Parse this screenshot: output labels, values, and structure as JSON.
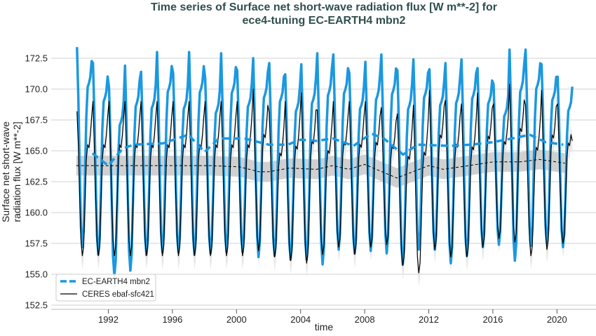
{
  "chart_data": {
    "type": "line",
    "title": [
      "Time series of Surface net short-wave radiation flux [W m**-2] for",
      "ece4-tuning EC-EARTH4 mbn2"
    ],
    "xlabel": "time",
    "ylabel": [
      "Surface net short-wave",
      "radiation flux [W m**-2]"
    ],
    "ylim": [
      152.1,
      174.0
    ],
    "xlim": [
      1989.0,
      2022.6
    ],
    "grid": "horizontal",
    "legend_position": "bottom-left",
    "yticks": [
      "152.5",
      "155.0",
      "157.5",
      "160.0",
      "162.5",
      "165.0",
      "167.5",
      "170.0",
      "172.5"
    ],
    "xticks": [
      "1992",
      "1996",
      "2000",
      "2004",
      "2008",
      "2012",
      "2016",
      "2020"
    ],
    "colors": {
      "model": "#1b98e0",
      "obs": "#000000",
      "obs_band": "#c8c8c8",
      "obs_spread": "#e4e4e4",
      "title": "#2f4f4f",
      "grid": "#d0d0d0"
    },
    "years": [
      1990,
      1991,
      1992,
      1993,
      1994,
      1995,
      1996,
      1997,
      1998,
      1999,
      2000,
      2001,
      2002,
      2003,
      2004,
      2005,
      2006,
      2007,
      2008,
      2009,
      2010,
      2011,
      2012,
      2013,
      2014,
      2015,
      2016,
      2017,
      2018,
      2019,
      2020
    ],
    "series": [
      {
        "name": "EC-EARTH4 mbn2",
        "style": "thick solid monthly + dashed running mean",
        "annual_max": [
          173.4,
          172.1,
          170.1,
          171.9,
          171.4,
          173.0,
          171.3,
          173.0,
          170.9,
          172.9,
          171.5,
          172.5,
          172.1,
          171.2,
          172.0,
          172.9,
          172.8,
          171.3,
          172.2,
          172.8,
          171.5,
          172.4,
          171.6,
          172.1,
          172.4,
          171.7,
          170.4,
          173.2,
          173.2,
          172.0,
          171.0
        ],
        "annual_min": [
          157.2,
          156.6,
          154.9,
          155.3,
          156.6,
          156.8,
          156.8,
          156.6,
          156.7,
          156.8,
          156.8,
          156.4,
          156.5,
          156.2,
          156.2,
          155.8,
          157.0,
          156.7,
          156.9,
          156.7,
          155.8,
          157.0,
          157.0,
          155.9,
          156.5,
          157.2,
          157.4,
          156.1,
          157.3,
          157.5,
          157.2
        ],
        "final_value": 170.2,
        "running_mean": [
          [
            1991.0,
            164.8
          ],
          [
            1992.0,
            163.8
          ],
          [
            1992.9,
            165.2
          ],
          [
            1993.6,
            165.5
          ],
          [
            1995.4,
            165.6
          ],
          [
            1997.0,
            166.3
          ],
          [
            1998.0,
            164.9
          ],
          [
            1998.9,
            166.0
          ],
          [
            2000.5,
            166.0
          ],
          [
            2002.0,
            165.5
          ],
          [
            2003.2,
            165.5
          ],
          [
            2004.0,
            165.9
          ],
          [
            2005.0,
            165.8
          ],
          [
            2006.0,
            166.0
          ],
          [
            2007.3,
            165.4
          ],
          [
            2008.4,
            166.4
          ],
          [
            2009.2,
            166.0
          ],
          [
            2010.4,
            164.7
          ],
          [
            2011.3,
            165.5
          ],
          [
            2013.4,
            165.4
          ],
          [
            2014.6,
            165.5
          ],
          [
            2016.0,
            165.7
          ],
          [
            2017.2,
            166.0
          ],
          [
            2018.3,
            166.3
          ],
          [
            2019.3,
            165.7
          ],
          [
            2020.4,
            165.5
          ]
        ]
      },
      {
        "name": "CERES ebaf-sfc421",
        "style": "thin solid monthly + dashed running mean with spread band",
        "annual_max": [
          169.0,
          169.0,
          169.0,
          169.0,
          169.0,
          169.0,
          169.0,
          169.0,
          169.0,
          169.0,
          169.0,
          170.0,
          168.1,
          169.0,
          169.7,
          168.3,
          169.0,
          169.0,
          169.0,
          168.5,
          168.0,
          168.7,
          169.9,
          169.1,
          168.8,
          169.7,
          168.8,
          170.4,
          168.7,
          169.9,
          168.8
        ],
        "annual_min": [
          156.5,
          156.5,
          156.5,
          156.5,
          156.5,
          156.5,
          156.5,
          156.5,
          156.5,
          156.5,
          156.5,
          156.9,
          156.4,
          156.1,
          155.9,
          156.6,
          157.2,
          156.6,
          157.2,
          157.4,
          155.7,
          155.1,
          157.0,
          156.4,
          156.4,
          157.2,
          157.9,
          157.6,
          156.5,
          157.0,
          157.5
        ],
        "first_value": 168.2,
        "final_value": 165.8,
        "running_mean": [
          [
            1990.0,
            163.8
          ],
          [
            1998.4,
            163.8
          ],
          [
            2000.2,
            163.7
          ],
          [
            2001.4,
            163.3
          ],
          [
            2002.0,
            163.3
          ],
          [
            2003.3,
            163.6
          ],
          [
            2005.0,
            163.5
          ],
          [
            2006.0,
            163.8
          ],
          [
            2007.0,
            163.5
          ],
          [
            2008.0,
            163.9
          ],
          [
            2010.0,
            162.8
          ],
          [
            2012.0,
            163.8
          ],
          [
            2012.9,
            163.5
          ],
          [
            2014.5,
            163.8
          ],
          [
            2016.0,
            164.1
          ],
          [
            2017.7,
            164.1
          ],
          [
            2018.9,
            164.3
          ],
          [
            2020.5,
            164.0
          ]
        ],
        "running_mean_spread": 0.8
      }
    ]
  }
}
